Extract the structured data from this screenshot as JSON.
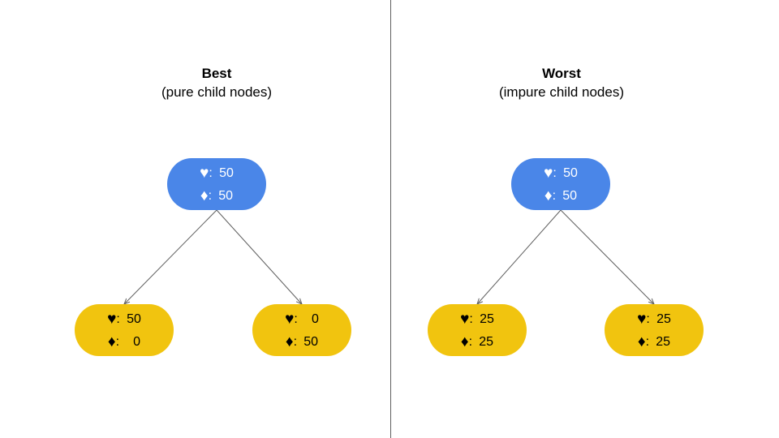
{
  "colors": {
    "root": "#4a86e8",
    "child": "#f1c40f",
    "edge": "#5f5f5f"
  },
  "suits": {
    "heart": "♥",
    "diamond": "♦"
  },
  "panels": [
    {
      "title": "Best",
      "subtitle": "(pure child nodes)",
      "root": {
        "hearts": "50",
        "diamonds": "50"
      },
      "left": {
        "hearts": "50",
        "diamonds": "0"
      },
      "right": {
        "hearts": "0",
        "diamonds": "50"
      }
    },
    {
      "title": "Worst",
      "subtitle": "(impure child nodes)",
      "root": {
        "hearts": "50",
        "diamonds": "50"
      },
      "left": {
        "hearts": "25",
        "diamonds": "25"
      },
      "right": {
        "hearts": "25",
        "diamonds": "25"
      }
    }
  ]
}
